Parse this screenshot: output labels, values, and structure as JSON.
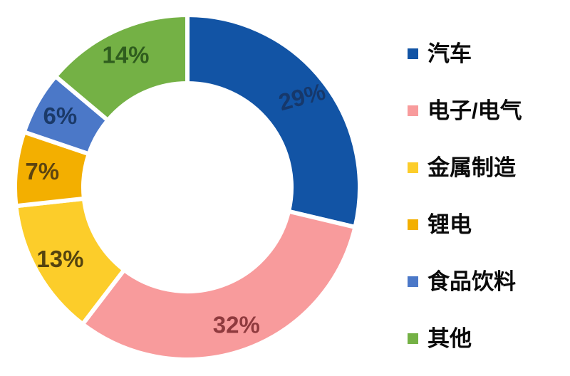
{
  "chart_data": {
    "type": "pie",
    "subtype": "donut",
    "title": "",
    "unit": "%",
    "direction": "clockwise",
    "start_angle_deg": 0,
    "legend_position": "right",
    "slices": [
      {
        "label": "汽车",
        "value": 29,
        "display": "29%",
        "color": "#1254A5",
        "label_color": "#16386B"
      },
      {
        "label": "电子/电气",
        "value": 32,
        "display": "32%",
        "color": "#F89B9C",
        "label_color": "#8F3A3E"
      },
      {
        "label": "金属制造",
        "value": 13,
        "display": "13%",
        "color": "#FCCD2A",
        "label_color": "#54430F"
      },
      {
        "label": "锂电",
        "value": 7,
        "display": "7%",
        "color": "#F3AF00",
        "label_color": "#5C4410"
      },
      {
        "label": "食品饮料",
        "value": 6,
        "display": "6%",
        "color": "#4B78C8",
        "label_color": "#1B3A69"
      },
      {
        "label": "其他",
        "value": 14,
        "display": "14%",
        "color": "#74B145",
        "label_color": "#2F5D1E"
      }
    ]
  }
}
